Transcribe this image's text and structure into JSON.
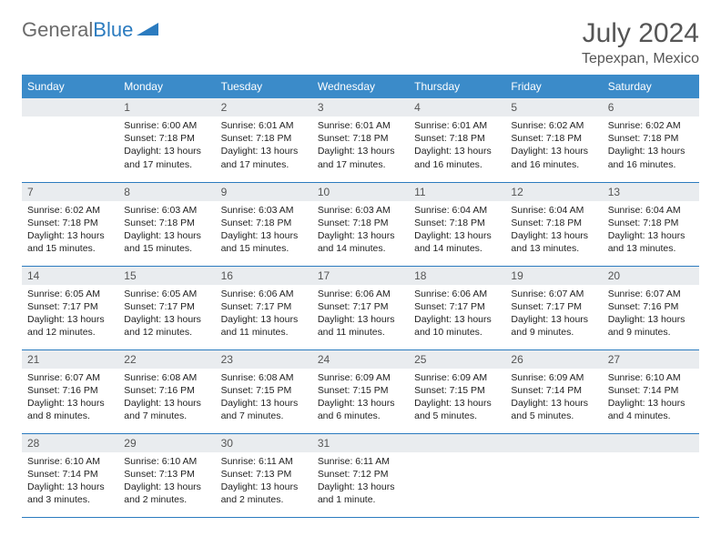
{
  "logo": {
    "part1": "General",
    "part2": "Blue"
  },
  "header": {
    "month": "July 2024",
    "location": "Tepexpan, Mexico"
  },
  "colors": {
    "header_bg": "#3b8bc9",
    "header_text": "#ffffff",
    "daynum_bg": "#e9ecef",
    "cell_border": "#2b7bbf",
    "text": "#222222",
    "title": "#555555"
  },
  "weekdays": [
    "Sunday",
    "Monday",
    "Tuesday",
    "Wednesday",
    "Thursday",
    "Friday",
    "Saturday"
  ],
  "first_weekday_index": 1,
  "days": [
    {
      "n": 1,
      "sunrise": "6:00 AM",
      "sunset": "7:18 PM",
      "daylight": "13 hours and 17 minutes."
    },
    {
      "n": 2,
      "sunrise": "6:01 AM",
      "sunset": "7:18 PM",
      "daylight": "13 hours and 17 minutes."
    },
    {
      "n": 3,
      "sunrise": "6:01 AM",
      "sunset": "7:18 PM",
      "daylight": "13 hours and 17 minutes."
    },
    {
      "n": 4,
      "sunrise": "6:01 AM",
      "sunset": "7:18 PM",
      "daylight": "13 hours and 16 minutes."
    },
    {
      "n": 5,
      "sunrise": "6:02 AM",
      "sunset": "7:18 PM",
      "daylight": "13 hours and 16 minutes."
    },
    {
      "n": 6,
      "sunrise": "6:02 AM",
      "sunset": "7:18 PM",
      "daylight": "13 hours and 16 minutes."
    },
    {
      "n": 7,
      "sunrise": "6:02 AM",
      "sunset": "7:18 PM",
      "daylight": "13 hours and 15 minutes."
    },
    {
      "n": 8,
      "sunrise": "6:03 AM",
      "sunset": "7:18 PM",
      "daylight": "13 hours and 15 minutes."
    },
    {
      "n": 9,
      "sunrise": "6:03 AM",
      "sunset": "7:18 PM",
      "daylight": "13 hours and 15 minutes."
    },
    {
      "n": 10,
      "sunrise": "6:03 AM",
      "sunset": "7:18 PM",
      "daylight": "13 hours and 14 minutes."
    },
    {
      "n": 11,
      "sunrise": "6:04 AM",
      "sunset": "7:18 PM",
      "daylight": "13 hours and 14 minutes."
    },
    {
      "n": 12,
      "sunrise": "6:04 AM",
      "sunset": "7:18 PM",
      "daylight": "13 hours and 13 minutes."
    },
    {
      "n": 13,
      "sunrise": "6:04 AM",
      "sunset": "7:18 PM",
      "daylight": "13 hours and 13 minutes."
    },
    {
      "n": 14,
      "sunrise": "6:05 AM",
      "sunset": "7:17 PM",
      "daylight": "13 hours and 12 minutes."
    },
    {
      "n": 15,
      "sunrise": "6:05 AM",
      "sunset": "7:17 PM",
      "daylight": "13 hours and 12 minutes."
    },
    {
      "n": 16,
      "sunrise": "6:06 AM",
      "sunset": "7:17 PM",
      "daylight": "13 hours and 11 minutes."
    },
    {
      "n": 17,
      "sunrise": "6:06 AM",
      "sunset": "7:17 PM",
      "daylight": "13 hours and 11 minutes."
    },
    {
      "n": 18,
      "sunrise": "6:06 AM",
      "sunset": "7:17 PM",
      "daylight": "13 hours and 10 minutes."
    },
    {
      "n": 19,
      "sunrise": "6:07 AM",
      "sunset": "7:17 PM",
      "daylight": "13 hours and 9 minutes."
    },
    {
      "n": 20,
      "sunrise": "6:07 AM",
      "sunset": "7:16 PM",
      "daylight": "13 hours and 9 minutes."
    },
    {
      "n": 21,
      "sunrise": "6:07 AM",
      "sunset": "7:16 PM",
      "daylight": "13 hours and 8 minutes."
    },
    {
      "n": 22,
      "sunrise": "6:08 AM",
      "sunset": "7:16 PM",
      "daylight": "13 hours and 7 minutes."
    },
    {
      "n": 23,
      "sunrise": "6:08 AM",
      "sunset": "7:15 PM",
      "daylight": "13 hours and 7 minutes."
    },
    {
      "n": 24,
      "sunrise": "6:09 AM",
      "sunset": "7:15 PM",
      "daylight": "13 hours and 6 minutes."
    },
    {
      "n": 25,
      "sunrise": "6:09 AM",
      "sunset": "7:15 PM",
      "daylight": "13 hours and 5 minutes."
    },
    {
      "n": 26,
      "sunrise": "6:09 AM",
      "sunset": "7:14 PM",
      "daylight": "13 hours and 5 minutes."
    },
    {
      "n": 27,
      "sunrise": "6:10 AM",
      "sunset": "7:14 PM",
      "daylight": "13 hours and 4 minutes."
    },
    {
      "n": 28,
      "sunrise": "6:10 AM",
      "sunset": "7:14 PM",
      "daylight": "13 hours and 3 minutes."
    },
    {
      "n": 29,
      "sunrise": "6:10 AM",
      "sunset": "7:13 PM",
      "daylight": "13 hours and 2 minutes."
    },
    {
      "n": 30,
      "sunrise": "6:11 AM",
      "sunset": "7:13 PM",
      "daylight": "13 hours and 2 minutes."
    },
    {
      "n": 31,
      "sunrise": "6:11 AM",
      "sunset": "7:12 PM",
      "daylight": "13 hours and 1 minute."
    }
  ],
  "labels": {
    "sunrise": "Sunrise:",
    "sunset": "Sunset:",
    "daylight": "Daylight:"
  }
}
